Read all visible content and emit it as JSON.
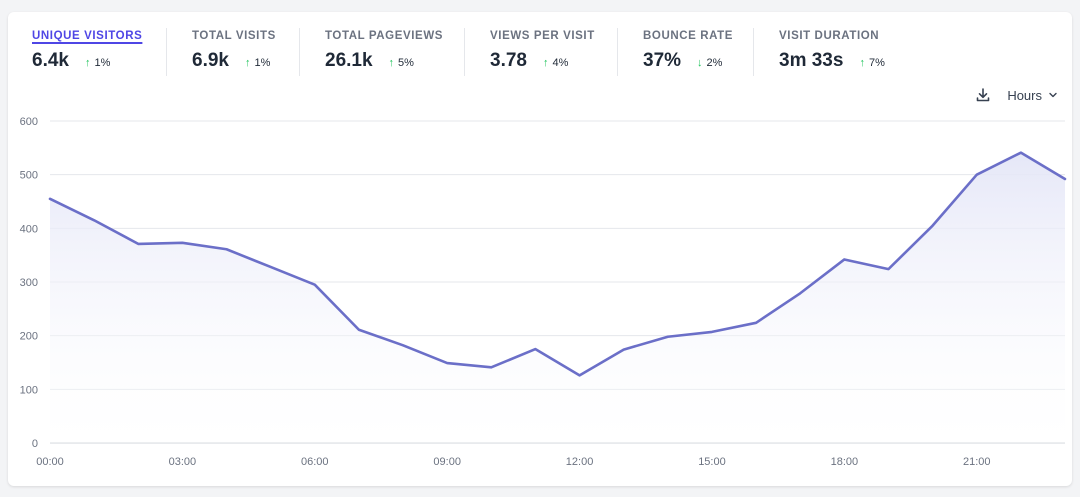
{
  "stats": [
    {
      "label": "UNIQUE VISITORS",
      "value": "6.4k",
      "change": "1%",
      "direction": "up",
      "active": true
    },
    {
      "label": "TOTAL VISITS",
      "value": "6.9k",
      "change": "1%",
      "direction": "up"
    },
    {
      "label": "TOTAL PAGEVIEWS",
      "value": "26.1k",
      "change": "5%",
      "direction": "up"
    },
    {
      "label": "VIEWS PER VISIT",
      "value": "3.78",
      "change": "4%",
      "direction": "up"
    },
    {
      "label": "BOUNCE RATE",
      "value": "37%",
      "change": "2%",
      "direction": "down"
    },
    {
      "label": "VISIT DURATION",
      "value": "3m 33s",
      "change": "7%",
      "direction": "up"
    }
  ],
  "controls": {
    "interval_label": "Hours"
  },
  "colors": {
    "line": "#6b6fc8",
    "fill_top": "#e4e6f7",
    "grid": "#e5e7eb",
    "active": "#4f46e5",
    "change_up": "#22c55e",
    "change_down": "#22c55e"
  },
  "icons": {
    "download": "download-icon",
    "chevron": "chevron-down-icon"
  },
  "chart_data": {
    "type": "area",
    "ylim": [
      0,
      600
    ],
    "yticks": [
      0,
      100,
      200,
      300,
      400,
      500,
      600
    ],
    "xticks": [
      "00:00",
      "03:00",
      "06:00",
      "09:00",
      "12:00",
      "15:00",
      "18:00",
      "21:00"
    ],
    "x": [
      "00:00",
      "01:00",
      "02:00",
      "03:00",
      "04:00",
      "05:00",
      "06:00",
      "07:00",
      "08:00",
      "09:00",
      "10:00",
      "11:00",
      "12:00",
      "13:00",
      "14:00",
      "15:00",
      "16:00",
      "17:00",
      "18:00",
      "19:00",
      "20:00",
      "21:00",
      "22:00",
      "23:00"
    ],
    "series": [
      {
        "values": [
          455,
          415,
          371,
          373,
          361,
          328,
          295,
          211,
          182,
          149,
          141,
          175,
          126,
          174,
          198,
          207,
          224,
          279,
          342,
          324,
          405,
          500,
          541,
          492
        ]
      }
    ],
    "grid": true
  }
}
